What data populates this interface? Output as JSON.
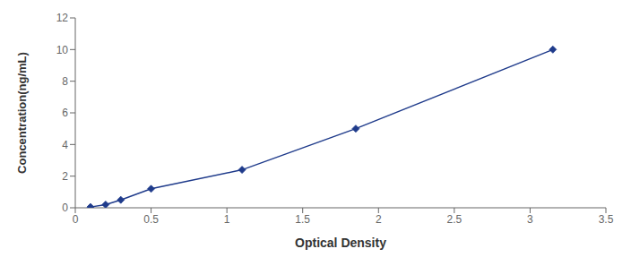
{
  "chart_data": {
    "type": "line",
    "x": [
      0.1,
      0.2,
      0.3,
      0.5,
      1.1,
      1.85,
      3.15
    ],
    "values": [
      0.05,
      0.2,
      0.5,
      1.2,
      2.4,
      5.0,
      10.0
    ],
    "color": "#1F3B8B",
    "marker": "diamond",
    "xlabel": "Optical Density",
    "ylabel": "Concentration(ng/mL)",
    "xlim": [
      0,
      3.5
    ],
    "ylim": [
      0,
      12
    ],
    "xticks": [
      0,
      0.5,
      1,
      1.5,
      2,
      2.5,
      3,
      3.5
    ],
    "yticks": [
      0,
      2,
      4,
      6,
      8,
      10,
      12
    ]
  }
}
